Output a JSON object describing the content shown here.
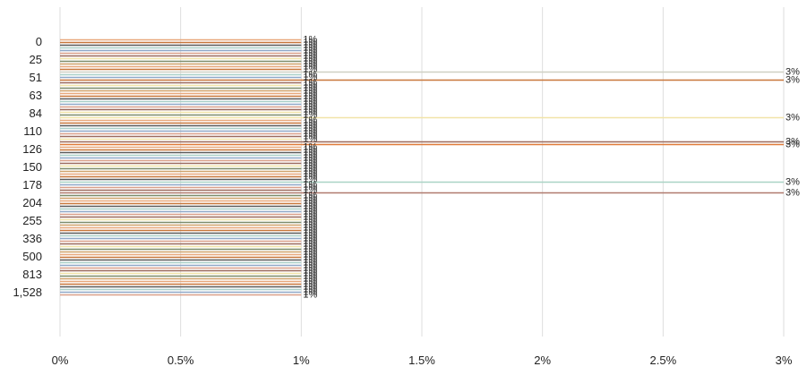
{
  "chart_data": {
    "type": "bar",
    "orientation": "horizontal",
    "xlim": [
      0,
      3
    ],
    "grid": true,
    "legend": "none",
    "x_ticks": [
      "0%",
      "0.5%",
      "1%",
      "1.5%",
      "2%",
      "2.5%",
      "3%"
    ],
    "y_ticks": [
      "0",
      "25",
      "51",
      "63",
      "84",
      "110",
      "126",
      "150",
      "178",
      "204",
      "255",
      "336",
      "500",
      "813",
      "1,528"
    ],
    "bar_count": 96,
    "default_value": 1,
    "default_label": "1%",
    "highlight_bars": [
      {
        "index": 12,
        "value": 3,
        "label": "3%",
        "color": "#cfd0c3"
      },
      {
        "index": 15,
        "value": 3,
        "label": "3%",
        "color": "#c8773b"
      },
      {
        "index": 29,
        "value": 3,
        "label": "3%",
        "color": "#f1e4a8"
      },
      {
        "index": 38,
        "value": 3,
        "label": "3%",
        "color": "#9c6a5d"
      },
      {
        "index": 39,
        "value": 3,
        "label": "3%",
        "color": "#e07b39"
      },
      {
        "index": 53,
        "value": 3,
        "label": "3%",
        "color": "#a9d3c5"
      },
      {
        "index": 57,
        "value": 3,
        "label": "3%",
        "color": "#b07a6e"
      }
    ],
    "palette": [
      "#e8a87c",
      "#c8773b",
      "#5b5b5b",
      "#a9cfc8",
      "#8fa8c8",
      "#d9a08a",
      "#9c6a5d",
      "#f1e4a8",
      "#7d8c6a",
      "#cfa26b"
    ]
  }
}
